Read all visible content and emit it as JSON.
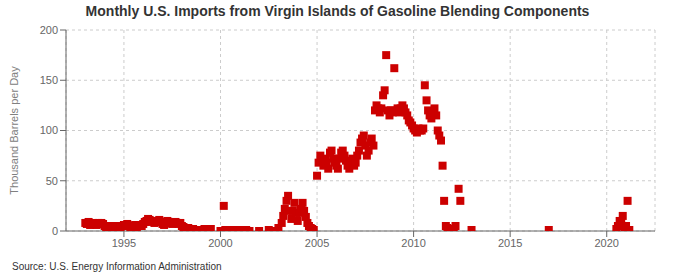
{
  "chart_data": {
    "type": "scatter",
    "title": "Monthly U.S. Imports from Virgin Islands of Gasoline Blending Components",
    "ylabel": "Thousand Barrels per Day",
    "source": "Source: U.S. Energy Information Administration",
    "xlim": [
      1992.0,
      2022.5
    ],
    "ylim": [
      0,
      200
    ],
    "xticks": [
      1995,
      2000,
      2005,
      2010,
      2015,
      2020
    ],
    "yticks": [
      0,
      50,
      100,
      150,
      200
    ],
    "color": "#cc0000",
    "marker": "square",
    "grid": true,
    "x": [
      1993.0,
      1993.08,
      1993.17,
      1993.25,
      1993.33,
      1993.42,
      1993.5,
      1993.58,
      1993.67,
      1993.75,
      1993.83,
      1993.92,
      1994.0,
      1994.08,
      1994.17,
      1994.25,
      1994.33,
      1994.42,
      1994.5,
      1994.58,
      1994.67,
      1994.75,
      1994.83,
      1994.92,
      1995.0,
      1995.08,
      1995.17,
      1995.25,
      1995.33,
      1995.42,
      1995.5,
      1995.58,
      1995.67,
      1995.75,
      1995.83,
      1995.92,
      1996.0,
      1996.08,
      1996.17,
      1996.25,
      1996.33,
      1996.42,
      1996.5,
      1996.58,
      1996.67,
      1996.75,
      1996.83,
      1996.92,
      1997.0,
      1997.08,
      1997.17,
      1997.25,
      1997.33,
      1997.42,
      1997.5,
      1997.58,
      1997.67,
      1997.75,
      1997.83,
      1997.92,
      1998.0,
      1998.08,
      1998.17,
      1998.25,
      1998.33,
      1998.42,
      1998.5,
      1998.58,
      1998.67,
      1999.0,
      1999.17,
      1999.33,
      1999.5,
      2000.0,
      2000.08,
      2000.17,
      2000.25,
      2000.33,
      2000.5,
      2000.67,
      2000.83,
      2001.0,
      2001.17,
      2001.33,
      2001.5,
      2002.0,
      2002.5,
      2002.75,
      2003.0,
      2003.17,
      2003.25,
      2003.33,
      2003.42,
      2003.5,
      2003.58,
      2003.67,
      2003.75,
      2003.83,
      2003.92,
      2004.0,
      2004.08,
      2004.17,
      2004.25,
      2004.33,
      2004.42,
      2004.5,
      2004.58,
      2004.67,
      2004.75,
      2004.83,
      2005.0,
      2005.08,
      2005.17,
      2005.25,
      2005.33,
      2005.42,
      2005.5,
      2005.58,
      2005.67,
      2005.75,
      2005.83,
      2005.92,
      2006.0,
      2006.08,
      2006.17,
      2006.25,
      2006.33,
      2006.42,
      2006.5,
      2006.58,
      2006.67,
      2006.75,
      2006.83,
      2006.92,
      2007.0,
      2007.08,
      2007.17,
      2007.25,
      2007.33,
      2007.42,
      2007.5,
      2007.58,
      2007.67,
      2007.75,
      2007.83,
      2007.92,
      2008.0,
      2008.08,
      2008.17,
      2008.25,
      2008.33,
      2008.42,
      2008.5,
      2008.58,
      2008.67,
      2008.75,
      2008.83,
      2008.92,
      2009.0,
      2009.08,
      2009.17,
      2009.25,
      2009.33,
      2009.42,
      2009.5,
      2009.58,
      2009.67,
      2009.75,
      2009.83,
      2009.92,
      2010.0,
      2010.08,
      2010.17,
      2010.25,
      2010.33,
      2010.42,
      2010.5,
      2010.58,
      2010.67,
      2010.75,
      2010.83,
      2010.92,
      2011.0,
      2011.08,
      2011.17,
      2011.25,
      2011.33,
      2011.42,
      2011.5,
      2011.58,
      2011.67,
      2011.75,
      2011.83,
      2012.0,
      2012.08,
      2012.17,
      2012.33,
      2012.42,
      2013.0,
      2017.0,
      2020.5,
      2020.58,
      2020.67,
      2020.75,
      2020.83,
      2020.92,
      2021.0,
      2021.08,
      2021.17
    ],
    "values": [
      8,
      7,
      9,
      6,
      7,
      8,
      7,
      6,
      8,
      7,
      8,
      7,
      5,
      4,
      3,
      5,
      4,
      4,
      5,
      3,
      4,
      5,
      4,
      5,
      6,
      5,
      7,
      5,
      4,
      3,
      5,
      6,
      4,
      5,
      6,
      5,
      7,
      9,
      10,
      12,
      11,
      9,
      10,
      8,
      9,
      10,
      11,
      9,
      7,
      6,
      8,
      10,
      9,
      8,
      7,
      8,
      9,
      8,
      7,
      8,
      5,
      4,
      3,
      2,
      3,
      2,
      1,
      2,
      1,
      1,
      2,
      1,
      2,
      0,
      0,
      25,
      1,
      0,
      1,
      1,
      0,
      1,
      0,
      1,
      0,
      0,
      1,
      0,
      3,
      8,
      15,
      22,
      30,
      35,
      20,
      12,
      20,
      28,
      18,
      10,
      18,
      22,
      28,
      20,
      14,
      8,
      5,
      3,
      2,
      1,
      55,
      68,
      75,
      70,
      65,
      72,
      68,
      62,
      78,
      80,
      72,
      68,
      65,
      62,
      72,
      78,
      80,
      75,
      70,
      65,
      62,
      68,
      72,
      65,
      68,
      75,
      80,
      88,
      92,
      95,
      85,
      75,
      80,
      88,
      92,
      85,
      120,
      125,
      122,
      118,
      122,
      135,
      140,
      175,
      120,
      115,
      120,
      118,
      162,
      120,
      122,
      118,
      122,
      125,
      122,
      118,
      115,
      110,
      108,
      105,
      102,
      100,
      98,
      102,
      100,
      100,
      102,
      145,
      130,
      120,
      115,
      112,
      118,
      122,
      115,
      100,
      95,
      90,
      65,
      30,
      5,
      3,
      0,
      2,
      1,
      5,
      42,
      30,
      1,
      1,
      2,
      5,
      10,
      8,
      15,
      3,
      5,
      30,
      1
    ]
  }
}
